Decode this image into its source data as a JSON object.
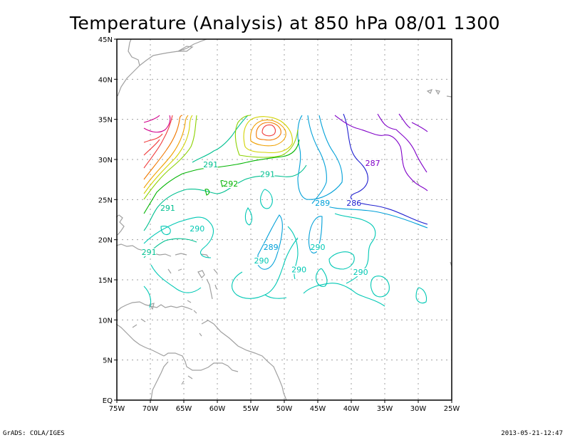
{
  "title": "Temperature (Analysis) at 850 hPa 08/01 1300",
  "footer": {
    "left": "GrADS: COLA/IGES",
    "right": "2013-05-21-12:47"
  },
  "map": {
    "lon_range": [
      -75,
      -25
    ],
    "lat_range": [
      0,
      45
    ],
    "lat_labels": [
      "EQ",
      "5N",
      "10N",
      "15N",
      "20N",
      "25N",
      "30N",
      "35N",
      "40N",
      "45N"
    ],
    "lon_labels": [
      "75W",
      "70W",
      "65W",
      "60W",
      "55W",
      "50W",
      "45W",
      "40W",
      "35W",
      "30W",
      "25W"
    ],
    "grid": "dotted",
    "colors": {
      "coast": "#a0a0a0",
      "grid": "#a0a0a0",
      "c286": "#2020d0",
      "c287": "#8000c8",
      "c289": "#00a0d8",
      "c290": "#00c8b4",
      "c291": "#00c090",
      "c292": "#00b400",
      "warm1": "#8cd200",
      "warm2": "#d2d200",
      "warm3": "#f0a000",
      "warm4": "#f07800",
      "warm5": "#f03c3c",
      "warm6": "#d2008c"
    },
    "contour_labels": [
      {
        "text": "287",
        "lon": -36.8,
        "lat": 29.4,
        "color": "c287"
      },
      {
        "text": "291",
        "lon": -61.0,
        "lat": 29.2,
        "color": "c291"
      },
      {
        "text": "292",
        "lon": -58.0,
        "lat": 26.8,
        "color": "c292"
      },
      {
        "text": "291",
        "lon": -52.5,
        "lat": 28.0,
        "color": "c291"
      },
      {
        "text": "289",
        "lon": -44.3,
        "lat": 24.4,
        "color": "c289"
      },
      {
        "text": "286",
        "lon": -39.6,
        "lat": 24.4,
        "color": "c286"
      },
      {
        "text": "291",
        "lon": -67.4,
        "lat": 23.8,
        "color": "c291"
      },
      {
        "text": "290",
        "lon": -63.0,
        "lat": 21.2,
        "color": "c290"
      },
      {
        "text": "289",
        "lon": -52.0,
        "lat": 18.9,
        "color": "c289"
      },
      {
        "text": "290",
        "lon": -45.0,
        "lat": 18.9,
        "color": "c290"
      },
      {
        "text": "291",
        "lon": -70.2,
        "lat": 18.3,
        "color": "c291"
      },
      {
        "text": "290",
        "lon": -53.4,
        "lat": 17.2,
        "color": "c290"
      },
      {
        "text": "290",
        "lon": -47.8,
        "lat": 16.1,
        "color": "c290"
      },
      {
        "text": "290",
        "lon": -38.6,
        "lat": 15.8,
        "color": "c290"
      }
    ]
  }
}
